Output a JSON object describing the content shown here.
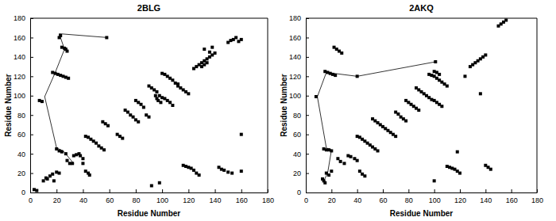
{
  "chart_data": [
    {
      "type": "scatter",
      "title": "2BLG",
      "x_label": "Residue Number",
      "y_label": "Residue Number",
      "xlim": [
        0,
        180
      ],
      "ylim": [
        0,
        180
      ],
      "xticks": [
        0,
        20,
        40,
        60,
        80,
        100,
        120,
        140,
        160,
        180
      ],
      "yticks": [
        0,
        20,
        40,
        60,
        80,
        100,
        120,
        140,
        160,
        180
      ],
      "series": [
        {
          "type": "scatter",
          "marker": "square",
          "color": "#000000",
          "x": [
            3,
            5,
            10,
            12,
            13,
            15,
            17,
            18,
            20,
            22,
            7,
            9,
            20,
            22,
            24,
            27,
            28,
            30,
            32,
            33,
            35,
            37,
            38,
            40,
            40,
            42,
            44,
            45,
            42,
            44,
            46,
            48,
            50,
            52,
            54,
            56,
            55,
            57,
            59,
            66,
            68,
            70,
            72,
            74,
            76,
            78,
            80,
            82,
            80,
            82,
            84,
            86,
            88,
            90,
            90,
            92,
            94,
            96,
            98,
            100,
            102,
            104,
            106,
            108,
            95,
            96,
            97,
            99,
            100,
            102,
            104,
            106,
            108,
            110,
            112,
            112,
            114,
            116,
            118,
            120,
            92,
            98,
            116,
            118,
            120,
            122,
            124,
            126,
            128,
            124,
            126,
            128,
            130,
            132,
            134,
            136,
            138,
            140,
            130,
            132,
            134,
            132,
            136,
            138,
            150,
            152,
            154,
            156,
            158,
            160,
            143,
            145,
            147,
            150,
            153,
            160,
            160,
            22,
            23,
            24,
            26,
            27,
            28,
            17,
            19,
            21,
            23,
            25,
            27,
            29,
            58
          ],
          "values": [
            3,
            2,
            12,
            15,
            14,
            17,
            19,
            12,
            21,
            20,
            95,
            94,
            45,
            43,
            42,
            40,
            33,
            30,
            30,
            38,
            39,
            40,
            38,
            35,
            30,
            22,
            20,
            18,
            58,
            57,
            55,
            53,
            51,
            48,
            46,
            44,
            73,
            71,
            69,
            60,
            58,
            56,
            85,
            83,
            80,
            78,
            75,
            73,
            95,
            93,
            91,
            88,
            80,
            78,
            110,
            108,
            106,
            104,
            100,
            98,
            97,
            95,
            93,
            90,
            100,
            97,
            95,
            93,
            123,
            122,
            120,
            118,
            116,
            113,
            110,
            112,
            108,
            106,
            104,
            102,
            7,
            10,
            28,
            27,
            26,
            25,
            23,
            20,
            18,
            128,
            130,
            132,
            134,
            136,
            138,
            140,
            142,
            144,
            130,
            132,
            134,
            148,
            145,
            150,
            155,
            157,
            158,
            160,
            156,
            158,
            26,
            24,
            23,
            21,
            20,
            60,
            22,
            160,
            162,
            150,
            149,
            148,
            146,
            124,
            123,
            122,
            121,
            120,
            119,
            118,
            160
          ]
        },
        {
          "type": "line",
          "line_style": "solid",
          "color": "#000000",
          "x": [
            59,
            22,
            26,
            19,
            11,
            20,
            25,
            33
          ],
          "values": [
            160,
            164,
            148,
            124,
            99,
            46,
            43,
            30
          ]
        }
      ]
    },
    {
      "type": "scatter",
      "title": "2AKQ",
      "x_label": "Residue Number",
      "y_label": "Residue Number",
      "xlim": [
        0,
        180
      ],
      "ylim": [
        0,
        180
      ],
      "xticks": [
        0,
        20,
        40,
        60,
        80,
        100,
        120,
        140,
        160,
        180
      ],
      "yticks": [
        0,
        20,
        40,
        60,
        80,
        100,
        120,
        140,
        160,
        180
      ],
      "series": [
        {
          "type": "scatter",
          "marker": "square",
          "color": "#000000",
          "x": [
            13,
            14,
            15,
            16,
            18,
            20,
            14,
            16,
            18,
            20,
            8,
            25,
            27,
            30,
            33,
            35,
            38,
            40,
            42,
            44,
            46,
            40,
            42,
            44,
            46,
            48,
            50,
            52,
            54,
            56,
            52,
            54,
            56,
            58,
            60,
            62,
            64,
            66,
            68,
            70,
            70,
            72,
            74,
            76,
            78,
            78,
            80,
            82,
            84,
            86,
            88,
            86,
            88,
            90,
            92,
            94,
            96,
            98,
            100,
            102,
            104,
            106,
            96,
            98,
            100,
            102,
            104,
            106,
            108,
            110,
            100,
            102,
            104,
            100,
            110,
            112,
            114,
            116,
            118,
            120,
            118,
            124,
            128,
            130,
            132,
            134,
            136,
            138,
            140,
            136,
            140,
            142,
            144,
            150,
            152,
            154,
            156,
            22,
            24,
            26,
            28,
            15,
            17,
            19,
            21,
            23,
            40,
            101
          ],
          "values": [
            14,
            12,
            10,
            20,
            18,
            22,
            45,
            44,
            44,
            43,
            99,
            35,
            32,
            30,
            38,
            37,
            35,
            33,
            22,
            19,
            17,
            58,
            57,
            55,
            53,
            51,
            49,
            47,
            45,
            43,
            76,
            74,
            72,
            70,
            68,
            66,
            64,
            62,
            60,
            58,
            83,
            81,
            78,
            76,
            74,
            95,
            93,
            91,
            89,
            87,
            85,
            108,
            106,
            104,
            102,
            100,
            98,
            96,
            95,
            93,
            91,
            89,
            122,
            121,
            120,
            118,
            116,
            114,
            112,
            110,
            125,
            124,
            122,
            12,
            27,
            26,
            25,
            24,
            22,
            20,
            42,
            120,
            130,
            132,
            134,
            136,
            138,
            140,
            142,
            102,
            28,
            26,
            24,
            172,
            174,
            176,
            178,
            150,
            148,
            146,
            144,
            125,
            124,
            123,
            122,
            121,
            120,
            135
          ]
        },
        {
          "type": "line",
          "line_style": "solid",
          "color": "#000000",
          "x": [
            101,
            40,
            16,
            9,
            16,
            20,
            17,
            14
          ],
          "values": [
            135,
            120,
            124,
            99,
            46,
            44,
            20,
            12
          ]
        }
      ]
    }
  ]
}
